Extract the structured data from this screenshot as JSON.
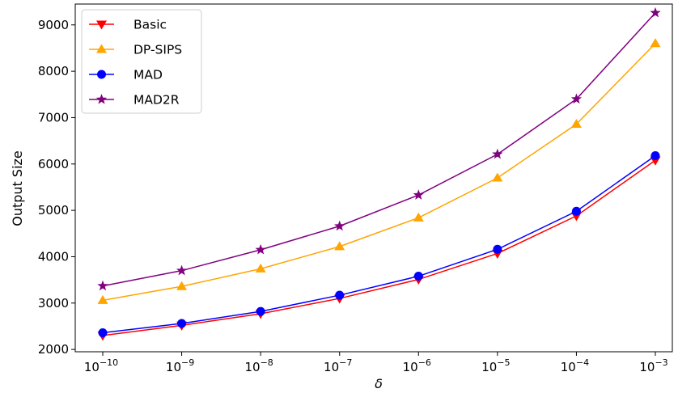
{
  "chart_data": {
    "type": "line",
    "xlabel": "δ",
    "ylabel": "Output Size",
    "x_scale": "log",
    "x": [
      1e-10,
      1e-09,
      1e-08,
      1e-07,
      1e-06,
      1e-05,
      0.0001,
      0.001
    ],
    "x_tick_labels": [
      {
        "base": "10",
        "exp": "−10"
      },
      {
        "base": "10",
        "exp": "−9"
      },
      {
        "base": "10",
        "exp": "−8"
      },
      {
        "base": "10",
        "exp": "−7"
      },
      {
        "base": "10",
        "exp": "−6"
      },
      {
        "base": "10",
        "exp": "−5"
      },
      {
        "base": "10",
        "exp": "−4"
      },
      {
        "base": "10",
        "exp": "−3"
      }
    ],
    "y_ticks": [
      2000,
      3000,
      4000,
      5000,
      6000,
      7000,
      8000,
      9000
    ],
    "ylim": [
      1950,
      9450
    ],
    "grid": false,
    "legend_position": "top-left",
    "series": [
      {
        "name": "Basic",
        "color": "#ff0000",
        "marker": "triangle-down",
        "values": [
          2300,
          2520,
          2770,
          3100,
          3510,
          4070,
          4880,
          6080
        ]
      },
      {
        "name": "DP-SIPS",
        "color": "#ffa500",
        "marker": "triangle-up",
        "values": [
          3060,
          3360,
          3740,
          4220,
          4840,
          5700,
          6860,
          8600
        ]
      },
      {
        "name": "MAD",
        "color": "#0000ff",
        "marker": "circle",
        "values": [
          2360,
          2560,
          2820,
          3170,
          3580,
          4160,
          4980,
          6180
        ]
      },
      {
        "name": "MAD2R",
        "color": "#800080",
        "marker": "star",
        "values": [
          3370,
          3700,
          4150,
          4660,
          5330,
          6210,
          7400,
          9260
        ]
      }
    ]
  }
}
